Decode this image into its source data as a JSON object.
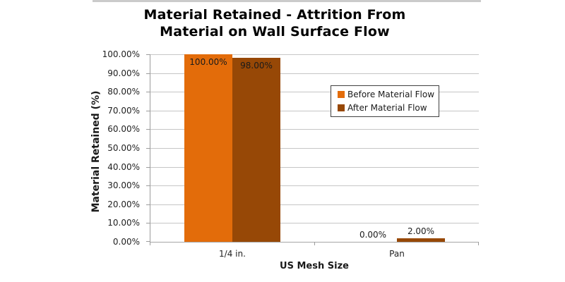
{
  "chart_data": {
    "type": "bar",
    "title": "Material Retained - Attrition From Material on Wall Surface Flow",
    "title_lines": [
      "Material Retained - Attrition From",
      "Material on Wall Surface Flow"
    ],
    "xlabel": "US Mesh Size",
    "ylabel": "Material Retained (%)",
    "categories": [
      "1/4 in.",
      "Pan"
    ],
    "series": [
      {
        "name": "Before Material Flow",
        "color": "#e36c0a",
        "values": [
          100,
          0
        ],
        "data_labels": [
          "100.00%",
          "0.00%"
        ]
      },
      {
        "name": "After Material Flow",
        "color": "#974806",
        "values": [
          98,
          2
        ],
        "data_labels": [
          "98.00%",
          "2.00%"
        ]
      }
    ],
    "ylim": [
      0,
      100
    ],
    "ytick_step": 10,
    "ytick_labels": [
      "0.00%",
      "10.00%",
      "20.00%",
      "30.00%",
      "40.00%",
      "50.00%",
      "60.00%",
      "70.00%",
      "80.00%",
      "90.00%",
      "100.00%"
    ],
    "grid": true,
    "legend_position": "inside-top-right",
    "colors": {
      "gridline": "#c6c6c6",
      "axis": "#9c9c9c",
      "tick_text": "#1f1f1f",
      "title_text": "#000000",
      "legend_border": "#404040",
      "top_strip": "#cbcbcb",
      "background": "#ffffff"
    }
  }
}
